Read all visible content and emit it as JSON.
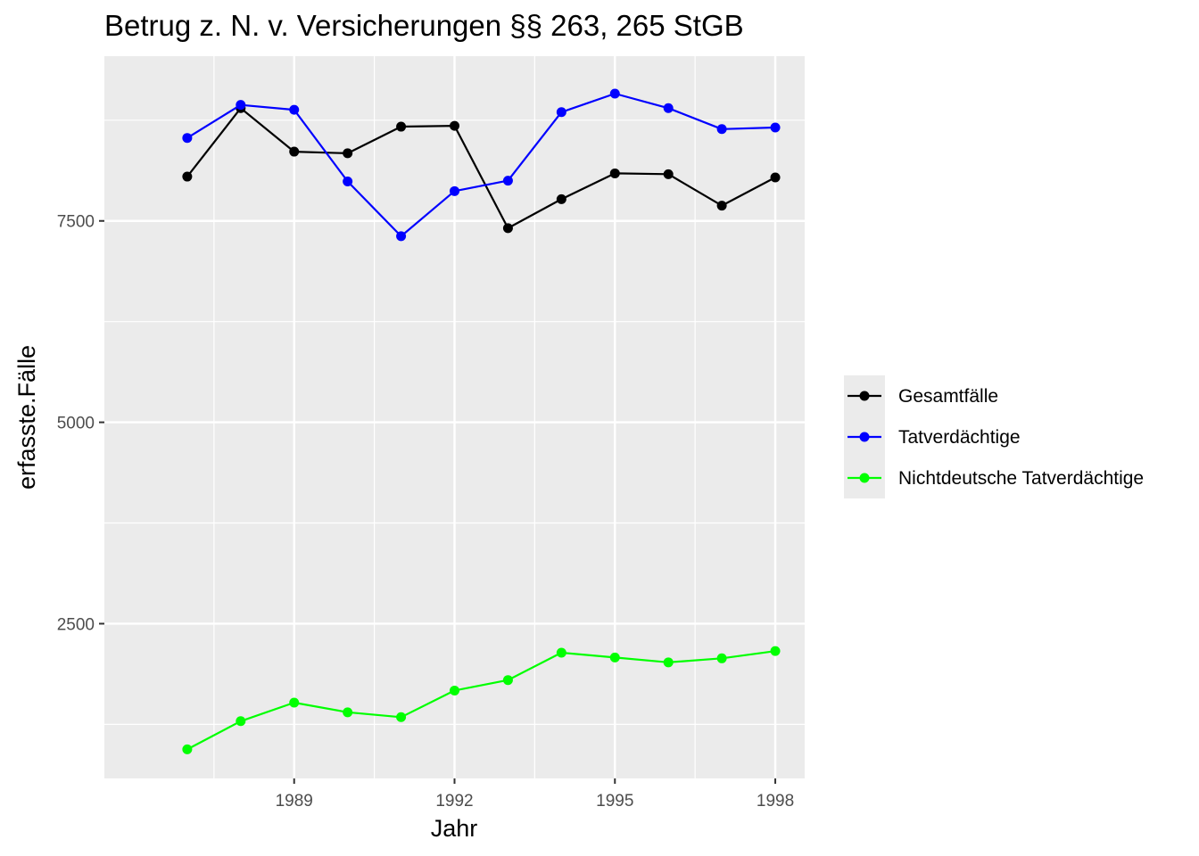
{
  "chart_data": {
    "type": "line",
    "title": "Betrug z. N. v. Versicherungen §§ 263, 265 StGB",
    "xlabel": "Jahr",
    "ylabel": "erfasste.Fälle",
    "x": [
      1987,
      1988,
      1989,
      1990,
      1991,
      1992,
      1993,
      1994,
      1995,
      1996,
      1997,
      1998
    ],
    "x_ticks": [
      1989,
      1992,
      1995,
      1998
    ],
    "y_ticks": [
      2500,
      5000,
      7500
    ],
    "xlim": [
      1985.45,
      1998.55
    ],
    "ylim": [
      579,
      9545
    ],
    "grid": true,
    "legend_position": "right",
    "series": [
      {
        "name": "Gesamtfälle",
        "color": "#000000",
        "values": [
          8050,
          8900,
          8360,
          8340,
          8670,
          8680,
          7410,
          7770,
          8090,
          8080,
          7690,
          8040
        ]
      },
      {
        "name": "Tatverdächtige",
        "color": "#0000ff",
        "values": [
          8530,
          8940,
          8880,
          7990,
          7310,
          7870,
          8000,
          8850,
          9080,
          8900,
          8640,
          8660
        ]
      },
      {
        "name": "Nichtdeutsche Tatverdächtige",
        "color": "#00ff00",
        "values": [
          940,
          1290,
          1520,
          1400,
          1340,
          1670,
          1800,
          2140,
          2080,
          2020,
          2070,
          2160
        ]
      }
    ]
  }
}
